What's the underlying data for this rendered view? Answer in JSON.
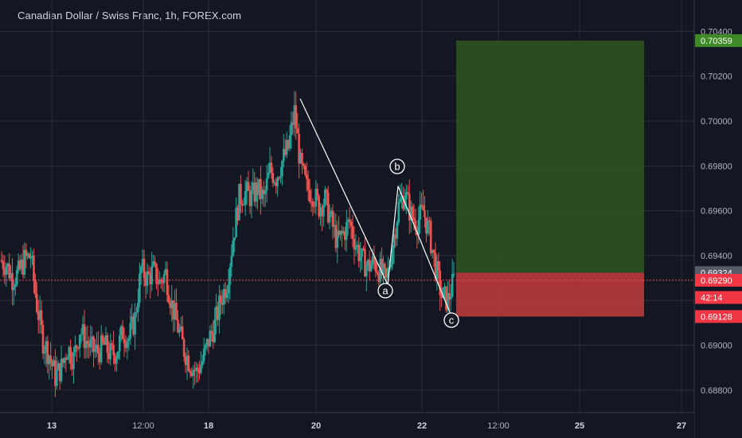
{
  "header": {
    "title": "Canadian Dollar / Swiss Franc, 1h, FOREX.com"
  },
  "colors": {
    "background": "#131722",
    "grid": "#2a2e39",
    "axis_text": "#b2b5be",
    "up": "#26a69a",
    "down": "#ef5350",
    "target_zone": "#2a4f21",
    "stop_zone": "#b93a3a",
    "current_line": "#ef5350",
    "tag_green": "#3d8a26",
    "tag_grey": "#575b66",
    "tag_red": "#f23645"
  },
  "price_axis": {
    "ticks": [
      "0.70400",
      "0.70200",
      "0.70000",
      "0.69800",
      "0.69600",
      "0.69400",
      "0.69200",
      "0.69000",
      "0.68800"
    ],
    "tick_values": [
      0.704,
      0.702,
      0.7,
      0.698,
      0.696,
      0.694,
      0.692,
      0.69,
      0.688
    ],
    "range": [
      0.687,
      0.7054
    ],
    "tags": [
      {
        "text": "0.70359",
        "value": 0.70359,
        "color": "green"
      },
      {
        "text": "0.69324",
        "value": 0.69324,
        "color": "grey"
      },
      {
        "text": "0.69290",
        "value": 0.6929,
        "color": "red"
      },
      {
        "text": "42:14",
        "value": 0.69213,
        "color": "red"
      },
      {
        "text": "0.69128",
        "value": 0.69128,
        "color": "red"
      }
    ]
  },
  "time_axis": {
    "ticks": [
      {
        "label": "13",
        "bold": true
      },
      {
        "label": "12:00",
        "bold": false
      },
      {
        "label": "18",
        "bold": true
      },
      {
        "label": "20",
        "bold": true
      },
      {
        "label": "22",
        "bold": true
      },
      {
        "label": "12:00",
        "bold": false
      },
      {
        "label": "25",
        "bold": true
      },
      {
        "label": "27",
        "bold": true
      }
    ]
  },
  "chart_data": {
    "type": "candlestick",
    "title": "Canadian Dollar / Swiss Franc, 1h, FOREX.com",
    "current_price": 0.6929,
    "position": {
      "target": 0.70359,
      "entry": 0.69324,
      "stop": 0.69128
    },
    "wave_labels": [
      {
        "label": "a",
        "value": 0.6926
      },
      {
        "label": "b",
        "value": 0.6971
      },
      {
        "label": "c",
        "value": 0.6913
      }
    ],
    "wave_line": [
      {
        "point": "start",
        "value": 0.701
      },
      {
        "point": "a",
        "value": 0.6927
      },
      {
        "point": "b",
        "value": 0.6971
      },
      {
        "point": "c",
        "value": 0.6913
      }
    ],
    "price_path": [
      {
        "value": 0.6938
      },
      {
        "value": 0.6936
      },
      {
        "value": 0.693
      },
      {
        "value": 0.6932
      },
      {
        "value": 0.6938
      },
      {
        "value": 0.694
      },
      {
        "value": 0.6918
      },
      {
        "value": 0.6902
      },
      {
        "value": 0.6896
      },
      {
        "value": 0.6886
      },
      {
        "value": 0.689
      },
      {
        "value": 0.6899
      },
      {
        "value": 0.6894
      },
      {
        "value": 0.6907
      },
      {
        "value": 0.6902
      },
      {
        "value": 0.6898
      },
      {
        "value": 0.6897
      },
      {
        "value": 0.69
      },
      {
        "value": 0.6896
      },
      {
        "value": 0.6897
      },
      {
        "value": 0.6906
      },
      {
        "value": 0.6903
      },
      {
        "value": 0.6912
      },
      {
        "value": 0.6934
      },
      {
        "value": 0.693
      },
      {
        "value": 0.6933
      },
      {
        "value": 0.6928
      },
      {
        "value": 0.6932
      },
      {
        "value": 0.6918
      },
      {
        "value": 0.6908
      },
      {
        "value": 0.6898
      },
      {
        "value": 0.6892
      },
      {
        "value": 0.6888
      },
      {
        "value": 0.6893
      },
      {
        "value": 0.6902
      },
      {
        "value": 0.6909
      },
      {
        "value": 0.692
      },
      {
        "value": 0.6928
      },
      {
        "value": 0.6948
      },
      {
        "value": 0.6966
      },
      {
        "value": 0.6968
      },
      {
        "value": 0.6966
      },
      {
        "value": 0.697
      },
      {
        "value": 0.6965
      },
      {
        "value": 0.6978
      },
      {
        "value": 0.6975
      },
      {
        "value": 0.6982
      },
      {
        "value": 0.6988
      },
      {
        "value": 0.7004
      },
      {
        "value": 0.698
      },
      {
        "value": 0.697
      },
      {
        "value": 0.6968
      },
      {
        "value": 0.6962
      },
      {
        "value": 0.6965
      },
      {
        "value": 0.6955
      },
      {
        "value": 0.6946
      },
      {
        "value": 0.695
      },
      {
        "value": 0.6955
      },
      {
        "value": 0.6945
      },
      {
        "value": 0.6938
      },
      {
        "value": 0.6935
      },
      {
        "value": 0.6937
      },
      {
        "value": 0.6933
      },
      {
        "value": 0.6928
      },
      {
        "value": 0.6945
      },
      {
        "value": 0.6962
      },
      {
        "value": 0.6968
      },
      {
        "value": 0.6958
      },
      {
        "value": 0.6955
      },
      {
        "value": 0.696
      },
      {
        "value": 0.695
      },
      {
        "value": 0.6935
      },
      {
        "value": 0.6922
      },
      {
        "value": 0.692
      },
      {
        "value": 0.6929
      }
    ]
  }
}
